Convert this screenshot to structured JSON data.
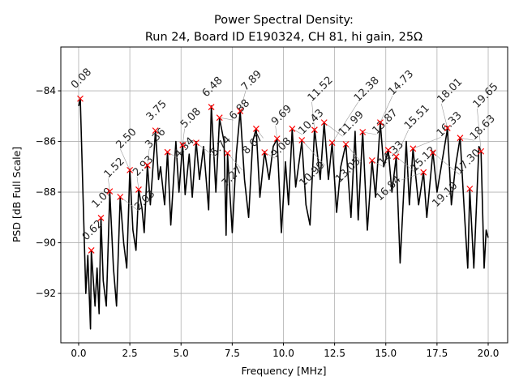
{
  "chart_data": {
    "type": "line",
    "title": "Power Spectral Density:",
    "subtitle": "Run 24, Board ID E190324, CH 81, hi gain, 25Ω",
    "xlabel": "Frequency [MHz]",
    "ylabel": "PSD [dB Full Scale]",
    "xlim": [
      -0.87,
      20.95
    ],
    "ylim": [
      -93.95,
      -82.27
    ],
    "xticks": [
      0.0,
      2.5,
      5.0,
      7.5,
      10.0,
      12.5,
      15.0,
      17.5,
      20.0
    ],
    "xtick_labels": [
      "0.0",
      "2.5",
      "5.0",
      "7.5",
      "10.0",
      "12.5",
      "15.0",
      "17.5",
      "20.0"
    ],
    "yticks": [
      -92,
      -90,
      -88,
      -86,
      -84
    ],
    "ytick_labels": [
      "−92",
      "−90",
      "−88",
      "−86",
      "−84"
    ],
    "grid": true,
    "line_color": "#000000",
    "marker_color": "#ff0000",
    "trace": {
      "x": [
        0.0,
        0.08,
        0.35,
        0.45,
        0.58,
        0.62,
        0.8,
        0.9,
        1.0,
        1.09,
        1.2,
        1.35,
        1.52,
        1.7,
        1.85,
        2.03,
        2.2,
        2.35,
        2.5,
        2.65,
        2.8,
        2.93,
        3.1,
        3.2,
        3.36,
        3.5,
        3.75,
        3.9,
        4.0,
        4.2,
        4.34,
        4.5,
        4.75,
        4.9,
        5.08,
        5.2,
        5.4,
        5.55,
        5.74,
        5.9,
        6.1,
        6.35,
        6.48,
        6.7,
        6.88,
        7.1,
        7.2,
        7.27,
        7.5,
        7.7,
        7.89,
        8.1,
        8.3,
        8.5,
        8.67,
        8.85,
        9.08,
        9.3,
        9.5,
        9.69,
        9.9,
        10.1,
        10.25,
        10.43,
        10.6,
        10.9,
        11.1,
        11.3,
        11.52,
        11.8,
        11.99,
        12.2,
        12.38,
        12.6,
        12.8,
        13.05,
        13.3,
        13.5,
        13.65,
        13.87,
        14.1,
        14.33,
        14.5,
        14.73,
        14.9,
        15.12,
        15.3,
        15.51,
        15.7,
        16.0,
        16.15,
        16.33,
        16.6,
        16.84,
        17.0,
        17.3,
        17.5,
        18.01,
        18.2,
        18.4,
        18.63,
        18.85,
        19.0,
        19.1,
        19.3,
        19.55,
        19.65,
        19.8,
        19.9,
        20.0
      ],
      "y": [
        -84.6,
        -84.3,
        -92.0,
        -90.5,
        -93.4,
        -90.3,
        -92.5,
        -91.0,
        -92.8,
        -89.0,
        -91.5,
        -92.5,
        -88.0,
        -91.0,
        -92.5,
        -88.2,
        -90.0,
        -91.0,
        -87.1,
        -89.5,
        -90.3,
        -87.9,
        -88.7,
        -89.6,
        -86.9,
        -88.5,
        -85.6,
        -87.5,
        -87.0,
        -88.5,
        -86.4,
        -89.3,
        -86.0,
        -88.0,
        -86.1,
        -88.1,
        -86.5,
        -88.2,
        -86.0,
        -87.5,
        -86.2,
        -88.7,
        -84.6,
        -88.0,
        -85.1,
        -86.0,
        -89.7,
        -86.5,
        -89.6,
        -86.5,
        -84.8,
        -87.5,
        -89.0,
        -86.0,
        -85.5,
        -88.2,
        -86.4,
        -87.5,
        -86.2,
        -85.9,
        -89.6,
        -86.8,
        -88.5,
        -85.5,
        -87.8,
        -86.0,
        -88.5,
        -89.3,
        -85.5,
        -87.5,
        -85.25,
        -87.5,
        -86.05,
        -88.8,
        -87.0,
        -86.1,
        -89.0,
        -85.6,
        -89.1,
        -85.6,
        -89.5,
        -86.75,
        -88.2,
        -85.25,
        -87.0,
        -86.35,
        -88.0,
        -86.6,
        -90.8,
        -86.0,
        -88.5,
        -86.3,
        -88.5,
        -87.2,
        -89.0,
        -86.4,
        -88.0,
        -85.5,
        -88.5,
        -87.0,
        -85.85,
        -89.0,
        -91.0,
        -87.9,
        -91.0,
        -86.2,
        -86.4,
        -91.0,
        -89.5,
        -89.8
      ]
    },
    "peaks": [
      {
        "label": "0.08",
        "x": 0.08,
        "y": -84.31
      },
      {
        "label": "0.62",
        "x": 0.62,
        "y": -90.3
      },
      {
        "label": "1.09",
        "x": 1.09,
        "y": -89.02
      },
      {
        "label": "1.52",
        "x": 1.52,
        "y": -87.97
      },
      {
        "label": "2.03",
        "x": 2.03,
        "y": -88.19
      },
      {
        "label": "2.50",
        "x": 2.5,
        "y": -87.13
      },
      {
        "label": "2.93",
        "x": 2.93,
        "y": -87.9
      },
      {
        "label": "3.36",
        "x": 3.36,
        "y": -86.94
      },
      {
        "label": "3.75",
        "x": 3.75,
        "y": -85.57
      },
      {
        "label": "4.34",
        "x": 4.34,
        "y": -86.42
      },
      {
        "label": "5.08",
        "x": 5.08,
        "y": -86.14
      },
      {
        "label": "5.74",
        "x": 5.74,
        "y": -86.05
      },
      {
        "label": "6.48",
        "x": 6.48,
        "y": -84.64
      },
      {
        "label": "6.88",
        "x": 6.88,
        "y": -85.06
      },
      {
        "label": "7.27",
        "x": 7.27,
        "y": -86.46
      },
      {
        "label": "7.89",
        "x": 7.89,
        "y": -84.8
      },
      {
        "label": "8.67",
        "x": 8.67,
        "y": -85.5
      },
      {
        "label": "9.08",
        "x": 9.08,
        "y": -86.43
      },
      {
        "label": "9.69",
        "x": 9.69,
        "y": -85.89
      },
      {
        "label": "10.43",
        "x": 10.43,
        "y": -85.5
      },
      {
        "label": "10.90",
        "x": 10.9,
        "y": -85.95
      },
      {
        "label": "11.52",
        "x": 11.52,
        "y": -85.54
      },
      {
        "label": "11.99",
        "x": 11.99,
        "y": -85.25
      },
      {
        "label": "12.38",
        "x": 12.38,
        "y": -86.05
      },
      {
        "label": "13.05",
        "x": 13.05,
        "y": -86.11
      },
      {
        "label": "13.87",
        "x": 13.87,
        "y": -85.63
      },
      {
        "label": "14.33",
        "x": 14.33,
        "y": -86.75
      },
      {
        "label": "14.73",
        "x": 14.73,
        "y": -85.25
      },
      {
        "label": "15.12",
        "x": 15.12,
        "y": -86.34
      },
      {
        "label": "15.51",
        "x": 15.51,
        "y": -86.6
      },
      {
        "label": "16.33",
        "x": 16.33,
        "y": -86.28
      },
      {
        "label": "16.84",
        "x": 16.84,
        "y": -87.22
      },
      {
        "label": "17.30",
        "x": 17.3,
        "y": -86.44
      },
      {
        "label": "18.01",
        "x": 18.01,
        "y": -85.47
      },
      {
        "label": "18.63",
        "x": 18.63,
        "y": -85.86
      },
      {
        "label": "19.10",
        "x": 19.1,
        "y": -87.87
      },
      {
        "label": "19.65",
        "x": 19.65,
        "y": -86.39
      }
    ]
  }
}
